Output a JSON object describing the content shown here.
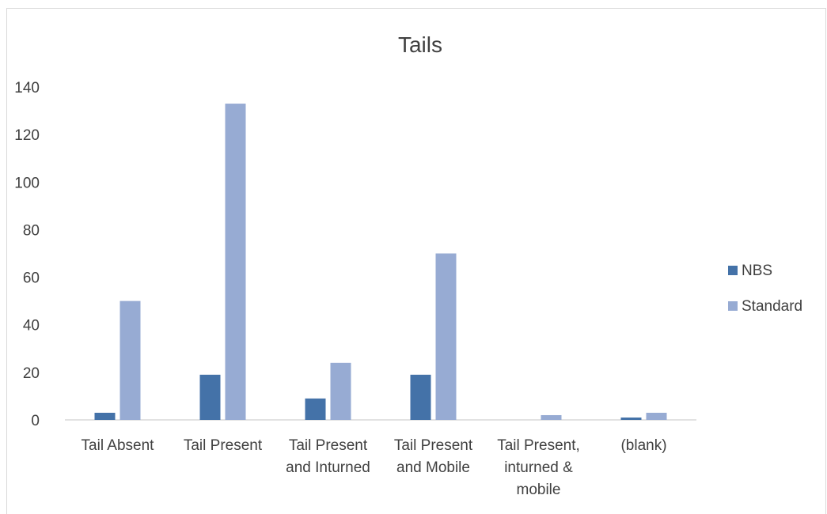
{
  "chart_data": {
    "type": "bar",
    "title": "Tails",
    "xlabel": "",
    "ylabel": "",
    "ylim": [
      0,
      140
    ],
    "yticks": [
      0,
      20,
      40,
      60,
      80,
      100,
      120,
      140
    ],
    "categories": [
      [
        "Tail Absent"
      ],
      [
        "Tail Present"
      ],
      [
        "Tail Present",
        "and Inturned"
      ],
      [
        "Tail Present",
        "and Mobile"
      ],
      [
        "Tail Present,",
        "inturned &",
        "mobile"
      ],
      [
        "(blank)"
      ]
    ],
    "series": [
      {
        "name": "NBS",
        "color": "#4472a8",
        "values": [
          3,
          19,
          9,
          19,
          0,
          1
        ]
      },
      {
        "name": "Standard",
        "color": "#97abd3",
        "values": [
          50,
          133,
          24,
          70,
          2,
          3
        ]
      }
    ],
    "grid": false,
    "legend": "right"
  }
}
